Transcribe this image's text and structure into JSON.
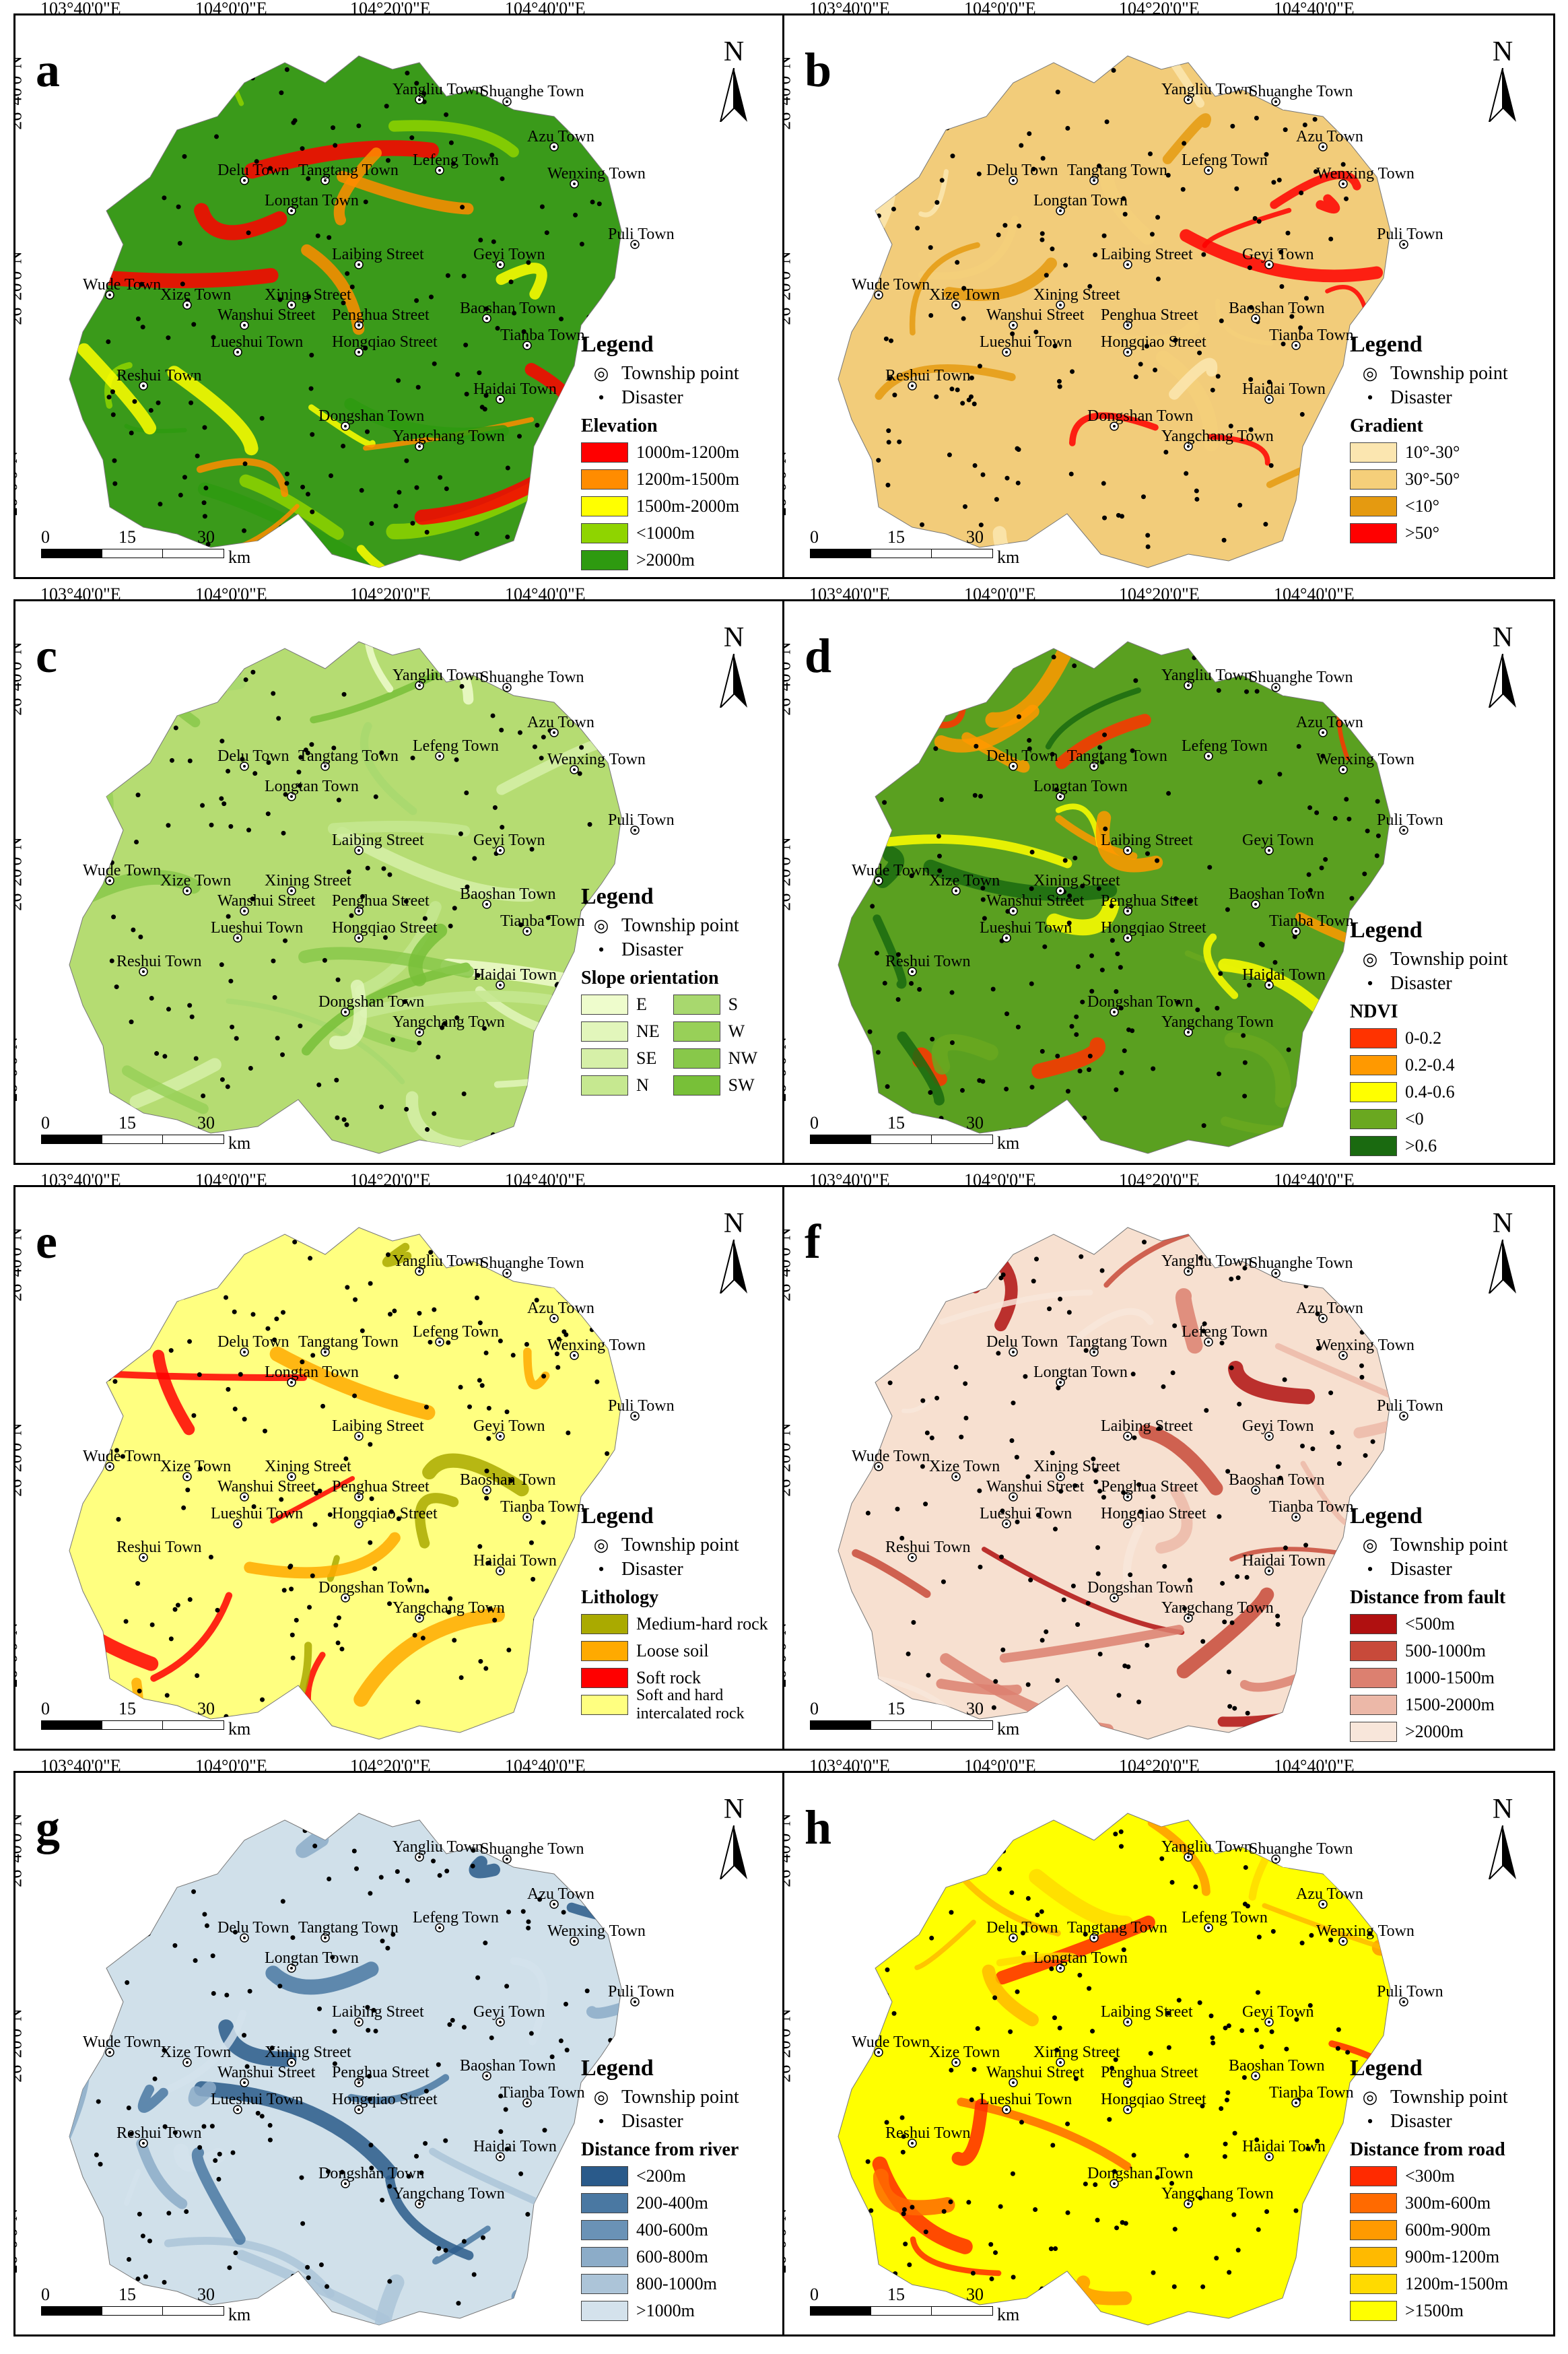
{
  "lon_labels": [
    "103°40'0\"E",
    "104°0'0\"E",
    "104°20'0\"E",
    "104°40'0\"E"
  ],
  "lat_labels": [
    "26°40'0\"N",
    "26°20'0\"N",
    "26°0'0\"N"
  ],
  "north_label": "N",
  "scale": {
    "ticks": [
      "0",
      "15",
      "30"
    ],
    "unit": "km"
  },
  "towns": [
    "Yangliu Town",
    "Shuanghe Town",
    "Azu Town",
    "Delu Town",
    "Tangtang Town",
    "Lefeng Town",
    "Wenxing Town",
    "Longtan Town",
    "Puli Town",
    "Laibing Street",
    "Geyi Town",
    "Wude Town",
    "Xize Town",
    "Xining Street",
    "Baoshan Town",
    "Wanshui Street",
    "Penghua Street",
    "Lueshui Town",
    "Hongqiao Street",
    "Tianba Town",
    "Reshui Town",
    "Haidai Town",
    "Dongshan Town",
    "Yangchang Town"
  ],
  "legend_common": {
    "title": "Legend",
    "township": "Township point",
    "disaster": "Disaster"
  },
  "panels": [
    {
      "letter": "a",
      "title": "Elevation",
      "base": "#3a9a1a",
      "accent": "#f5f500",
      "classes": [
        {
          "label": "1000m-1200m",
          "color": "#ff0000"
        },
        {
          "label": "1200m-1500m",
          "color": "#ff8c00"
        },
        {
          "label": "1500m-2000m",
          "color": "#ffff00"
        },
        {
          "label": "<1000m",
          "color": "#8fd400"
        },
        {
          "label": ">2000m",
          "color": "#2e9a10"
        }
      ]
    },
    {
      "letter": "b",
      "title": "Gradient",
      "base": "#f2cc7a",
      "accent": "#e3a030",
      "classes": [
        {
          "label": "10°-30°",
          "color": "#fbe6b0"
        },
        {
          "label": "30°-50°",
          "color": "#f5cf7a"
        },
        {
          "label": "<10°",
          "color": "#e59a10"
        },
        {
          "label": ">50°",
          "color": "#ff0000"
        }
      ]
    },
    {
      "letter": "c",
      "title": "Slope orientation",
      "base": "#b5dc72",
      "accent": "#9ccf55",
      "classes": [
        {
          "label": "E",
          "color": "#eefccc"
        },
        {
          "label": "NE",
          "color": "#e2f6bb"
        },
        {
          "label": "SE",
          "color": "#d6f0a8"
        },
        {
          "label": "N",
          "color": "#c6e890"
        },
        {
          "label": "S",
          "color": "#a8d86e"
        },
        {
          "label": "W",
          "color": "#98d058"
        },
        {
          "label": "NW",
          "color": "#88c84a"
        },
        {
          "label": "SW",
          "color": "#78c038"
        }
      ]
    },
    {
      "letter": "d",
      "title": "NDVI",
      "base": "#5aa020",
      "accent": "#1e6a10",
      "classes": [
        {
          "label": "0-0.2",
          "color": "#ff3300"
        },
        {
          "label": "0.2-0.4",
          "color": "#ff9900"
        },
        {
          "label": "0.4-0.6",
          "color": "#ffff00"
        },
        {
          "label": "<0",
          "color": "#6aa820"
        },
        {
          "label": ">0.6",
          "color": "#1a6a10"
        }
      ]
    },
    {
      "letter": "e",
      "title": "Lithology",
      "base": "#ffff80",
      "accent": "#ff0000",
      "classes": [
        {
          "label": "Medium-hard rock",
          "color": "#aaaa00"
        },
        {
          "label": "Loose soil",
          "color": "#ffaa00"
        },
        {
          "label": "Soft rock",
          "color": "#ff0000"
        },
        {
          "label": "Soft and hard intercalated rock",
          "color": "#ffff80"
        }
      ]
    },
    {
      "letter": "f",
      "title": "Distance from fault",
      "base": "#f7e0d0",
      "accent": "#b01010",
      "classes": [
        {
          "label": "<500m",
          "color": "#b01010"
        },
        {
          "label": "500-1000m",
          "color": "#c84a3a"
        },
        {
          "label": "1000-1500m",
          "color": "#dc8070"
        },
        {
          "label": "1500-2000m",
          "color": "#ecb8a8"
        },
        {
          "label": ">2000m",
          "color": "#f8e6da"
        }
      ]
    },
    {
      "letter": "g",
      "title": "Distance from river",
      "base": "#d0e0ea",
      "accent": "#2a5a8a",
      "classes": [
        {
          "label": "<200m",
          "color": "#2a5a8a"
        },
        {
          "label": "200-400m",
          "color": "#4a78a2"
        },
        {
          "label": "400-600m",
          "color": "#6a92b6"
        },
        {
          "label": "600-800m",
          "color": "#8cacc8"
        },
        {
          "label": "800-1000m",
          "color": "#acc4d8"
        },
        {
          "label": ">1000m",
          "color": "#d4e2ec"
        }
      ]
    },
    {
      "letter": "h",
      "title": "Distance from road",
      "base": "#ffff00",
      "accent": "#e83010",
      "classes": [
        {
          "label": "<300m",
          "color": "#ff2a00"
        },
        {
          "label": "300m-600m",
          "color": "#ff6a00"
        },
        {
          "label": "600m-900m",
          "color": "#ff9a00"
        },
        {
          "label": "900m-1200m",
          "color": "#ffba00"
        },
        {
          "label": "1200m-1500m",
          "color": "#ffda00"
        },
        {
          "label": ">1500m",
          "color": "#ffff00"
        }
      ]
    }
  ]
}
